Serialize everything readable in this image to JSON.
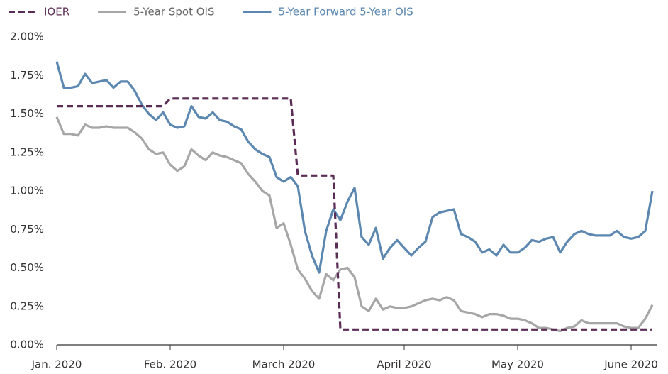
{
  "chart_data": {
    "type": "line",
    "categories": [
      "Jan. 2020",
      null,
      null,
      null,
      null,
      null,
      null,
      null,
      null,
      null,
      null,
      null,
      null,
      null,
      null,
      null,
      "Feb. 2020",
      null,
      null,
      null,
      null,
      null,
      null,
      null,
      null,
      null,
      null,
      null,
      null,
      null,
      null,
      null,
      "March 2020",
      null,
      null,
      null,
      null,
      null,
      null,
      null,
      null,
      null,
      null,
      null,
      null,
      null,
      null,
      null,
      null,
      "April 2020",
      null,
      null,
      null,
      null,
      null,
      null,
      null,
      null,
      null,
      null,
      null,
      null,
      null,
      null,
      null,
      "May 2020",
      null,
      null,
      null,
      null,
      null,
      null,
      null,
      null,
      null,
      null,
      null,
      null,
      null,
      null,
      null,
      "June 2020",
      null,
      null,
      null
    ],
    "series": [
      {
        "name": "IOER",
        "color": "#5b2c56",
        "dashed": true,
        "values": [
          1.55,
          1.55,
          1.55,
          1.55,
          1.55,
          1.55,
          1.55,
          1.55,
          1.55,
          1.55,
          1.55,
          1.55,
          1.55,
          1.55,
          1.55,
          1.55,
          1.6,
          1.6,
          1.6,
          1.6,
          1.6,
          1.6,
          1.6,
          1.6,
          1.6,
          1.6,
          1.6,
          1.6,
          1.6,
          1.6,
          1.6,
          1.6,
          1.6,
          1.6,
          1.1,
          1.1,
          1.1,
          1.1,
          1.1,
          1.1,
          0.1,
          0.1,
          0.1,
          0.1,
          0.1,
          0.1,
          0.1,
          0.1,
          0.1,
          0.1,
          0.1,
          0.1,
          0.1,
          0.1,
          0.1,
          0.1,
          0.1,
          0.1,
          0.1,
          0.1,
          0.1,
          0.1,
          0.1,
          0.1,
          0.1,
          0.1,
          0.1,
          0.1,
          0.1,
          0.1,
          0.1,
          0.1,
          0.1,
          0.1,
          0.1,
          0.1,
          0.1,
          0.1,
          0.1,
          0.1,
          0.1,
          0.1,
          0.1,
          0.1,
          0.1
        ]
      },
      {
        "name": "5-Year Spot OIS",
        "color": "#a6a6a6",
        "dashed": false,
        "values": [
          1.48,
          1.37,
          1.37,
          1.36,
          1.43,
          1.41,
          1.41,
          1.42,
          1.41,
          1.41,
          1.41,
          1.38,
          1.34,
          1.27,
          1.24,
          1.25,
          1.17,
          1.13,
          1.16,
          1.27,
          1.23,
          1.2,
          1.25,
          1.23,
          1.22,
          1.2,
          1.18,
          1.11,
          1.06,
          1.0,
          0.97,
          0.76,
          0.79,
          0.65,
          0.49,
          0.43,
          0.35,
          0.3,
          0.46,
          0.42,
          0.49,
          0.5,
          0.44,
          0.25,
          0.22,
          0.3,
          0.23,
          0.25,
          0.24,
          0.24,
          0.25,
          0.27,
          0.29,
          0.3,
          0.29,
          0.31,
          0.29,
          0.22,
          0.21,
          0.2,
          0.18,
          0.2,
          0.2,
          0.19,
          0.17,
          0.17,
          0.16,
          0.14,
          0.11,
          0.11,
          0.1,
          0.09,
          0.11,
          0.12,
          0.16,
          0.14,
          0.14,
          0.14,
          0.14,
          0.14,
          0.12,
          0.11,
          0.11,
          0.17,
          0.26
        ]
      },
      {
        "name": "5-Year Forward 5-Year OIS",
        "color": "#5b87b0",
        "dashed": false,
        "values": [
          1.84,
          1.67,
          1.67,
          1.68,
          1.76,
          1.7,
          1.71,
          1.72,
          1.67,
          1.71,
          1.71,
          1.65,
          1.56,
          1.5,
          1.46,
          1.51,
          1.43,
          1.41,
          1.42,
          1.55,
          1.48,
          1.47,
          1.51,
          1.46,
          1.45,
          1.42,
          1.4,
          1.32,
          1.27,
          1.24,
          1.22,
          1.09,
          1.06,
          1.09,
          1.03,
          0.74,
          0.58,
          0.47,
          0.74,
          0.88,
          0.81,
          0.93,
          1.02,
          0.7,
          0.65,
          0.76,
          0.56,
          0.63,
          0.68,
          0.63,
          0.58,
          0.63,
          0.67,
          0.83,
          0.86,
          0.87,
          0.88,
          0.72,
          0.7,
          0.67,
          0.6,
          0.62,
          0.58,
          0.65,
          0.6,
          0.6,
          0.63,
          0.68,
          0.67,
          0.69,
          0.7,
          0.6,
          0.67,
          0.72,
          0.74,
          0.72,
          0.71,
          0.71,
          0.71,
          0.74,
          0.7,
          0.69,
          0.7,
          0.74,
          1.0
        ]
      }
    ],
    "ylim": [
      0,
      2
    ],
    "yticks": [
      {
        "value": 0,
        "label": "0.00%"
      },
      {
        "value": 0.25,
        "label": "0.25%"
      },
      {
        "value": 0.5,
        "label": "0.50%"
      },
      {
        "value": 0.75,
        "label": "0.75%"
      },
      {
        "value": 1,
        "label": "1.00%"
      },
      {
        "value": 1.25,
        "label": "1.25%"
      },
      {
        "value": 1.5,
        "label": "1.50%"
      },
      {
        "value": 1.75,
        "label": "1.75%"
      },
      {
        "value": 2,
        "label": "2.00%"
      }
    ],
    "grid": false,
    "legend": "top"
  }
}
